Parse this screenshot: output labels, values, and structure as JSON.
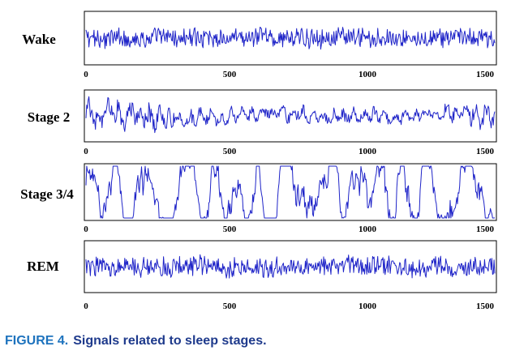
{
  "chart_data": [
    {
      "type": "line",
      "title": "Wake",
      "x_ticks": [
        "0",
        "500",
        "1000",
        "1500"
      ],
      "xlim": [
        0,
        1550
      ],
      "ylim": [
        -1,
        1
      ],
      "series": [
        {
          "color": "#1f24c8",
          "amplitude": 0.32,
          "character": "low-amplitude fast noise"
        }
      ]
    },
    {
      "type": "line",
      "title": "Stage 2",
      "x_ticks": [
        "0",
        "500",
        "1000",
        "1500"
      ],
      "xlim": [
        0,
        1550
      ],
      "ylim": [
        -1,
        1
      ],
      "series": [
        {
          "color": "#1f24c8",
          "amplitude": 0.55,
          "character": "medium-amplitude mixed activity"
        }
      ]
    },
    {
      "type": "line",
      "title": "Stage 3/4",
      "x_ticks": [
        "0",
        "500",
        "1000",
        "1500"
      ],
      "xlim": [
        0,
        1550
      ],
      "ylim": [
        -1,
        1
      ],
      "series": [
        {
          "color": "#1f24c8",
          "amplitude": 1.0,
          "character": "high-amplitude slow waves"
        }
      ]
    },
    {
      "type": "line",
      "title": "REM",
      "x_ticks": [
        "0",
        "500",
        "1000",
        "1500"
      ],
      "xlim": [
        0,
        1550
      ],
      "ylim": [
        -1,
        1
      ],
      "series": [
        {
          "color": "#1f24c8",
          "amplitude": 0.38,
          "character": "low-to-medium mixed frequency"
        }
      ]
    }
  ],
  "caption": {
    "number": "FIGURE 4.",
    "text": "Signals related to sleep stages."
  }
}
